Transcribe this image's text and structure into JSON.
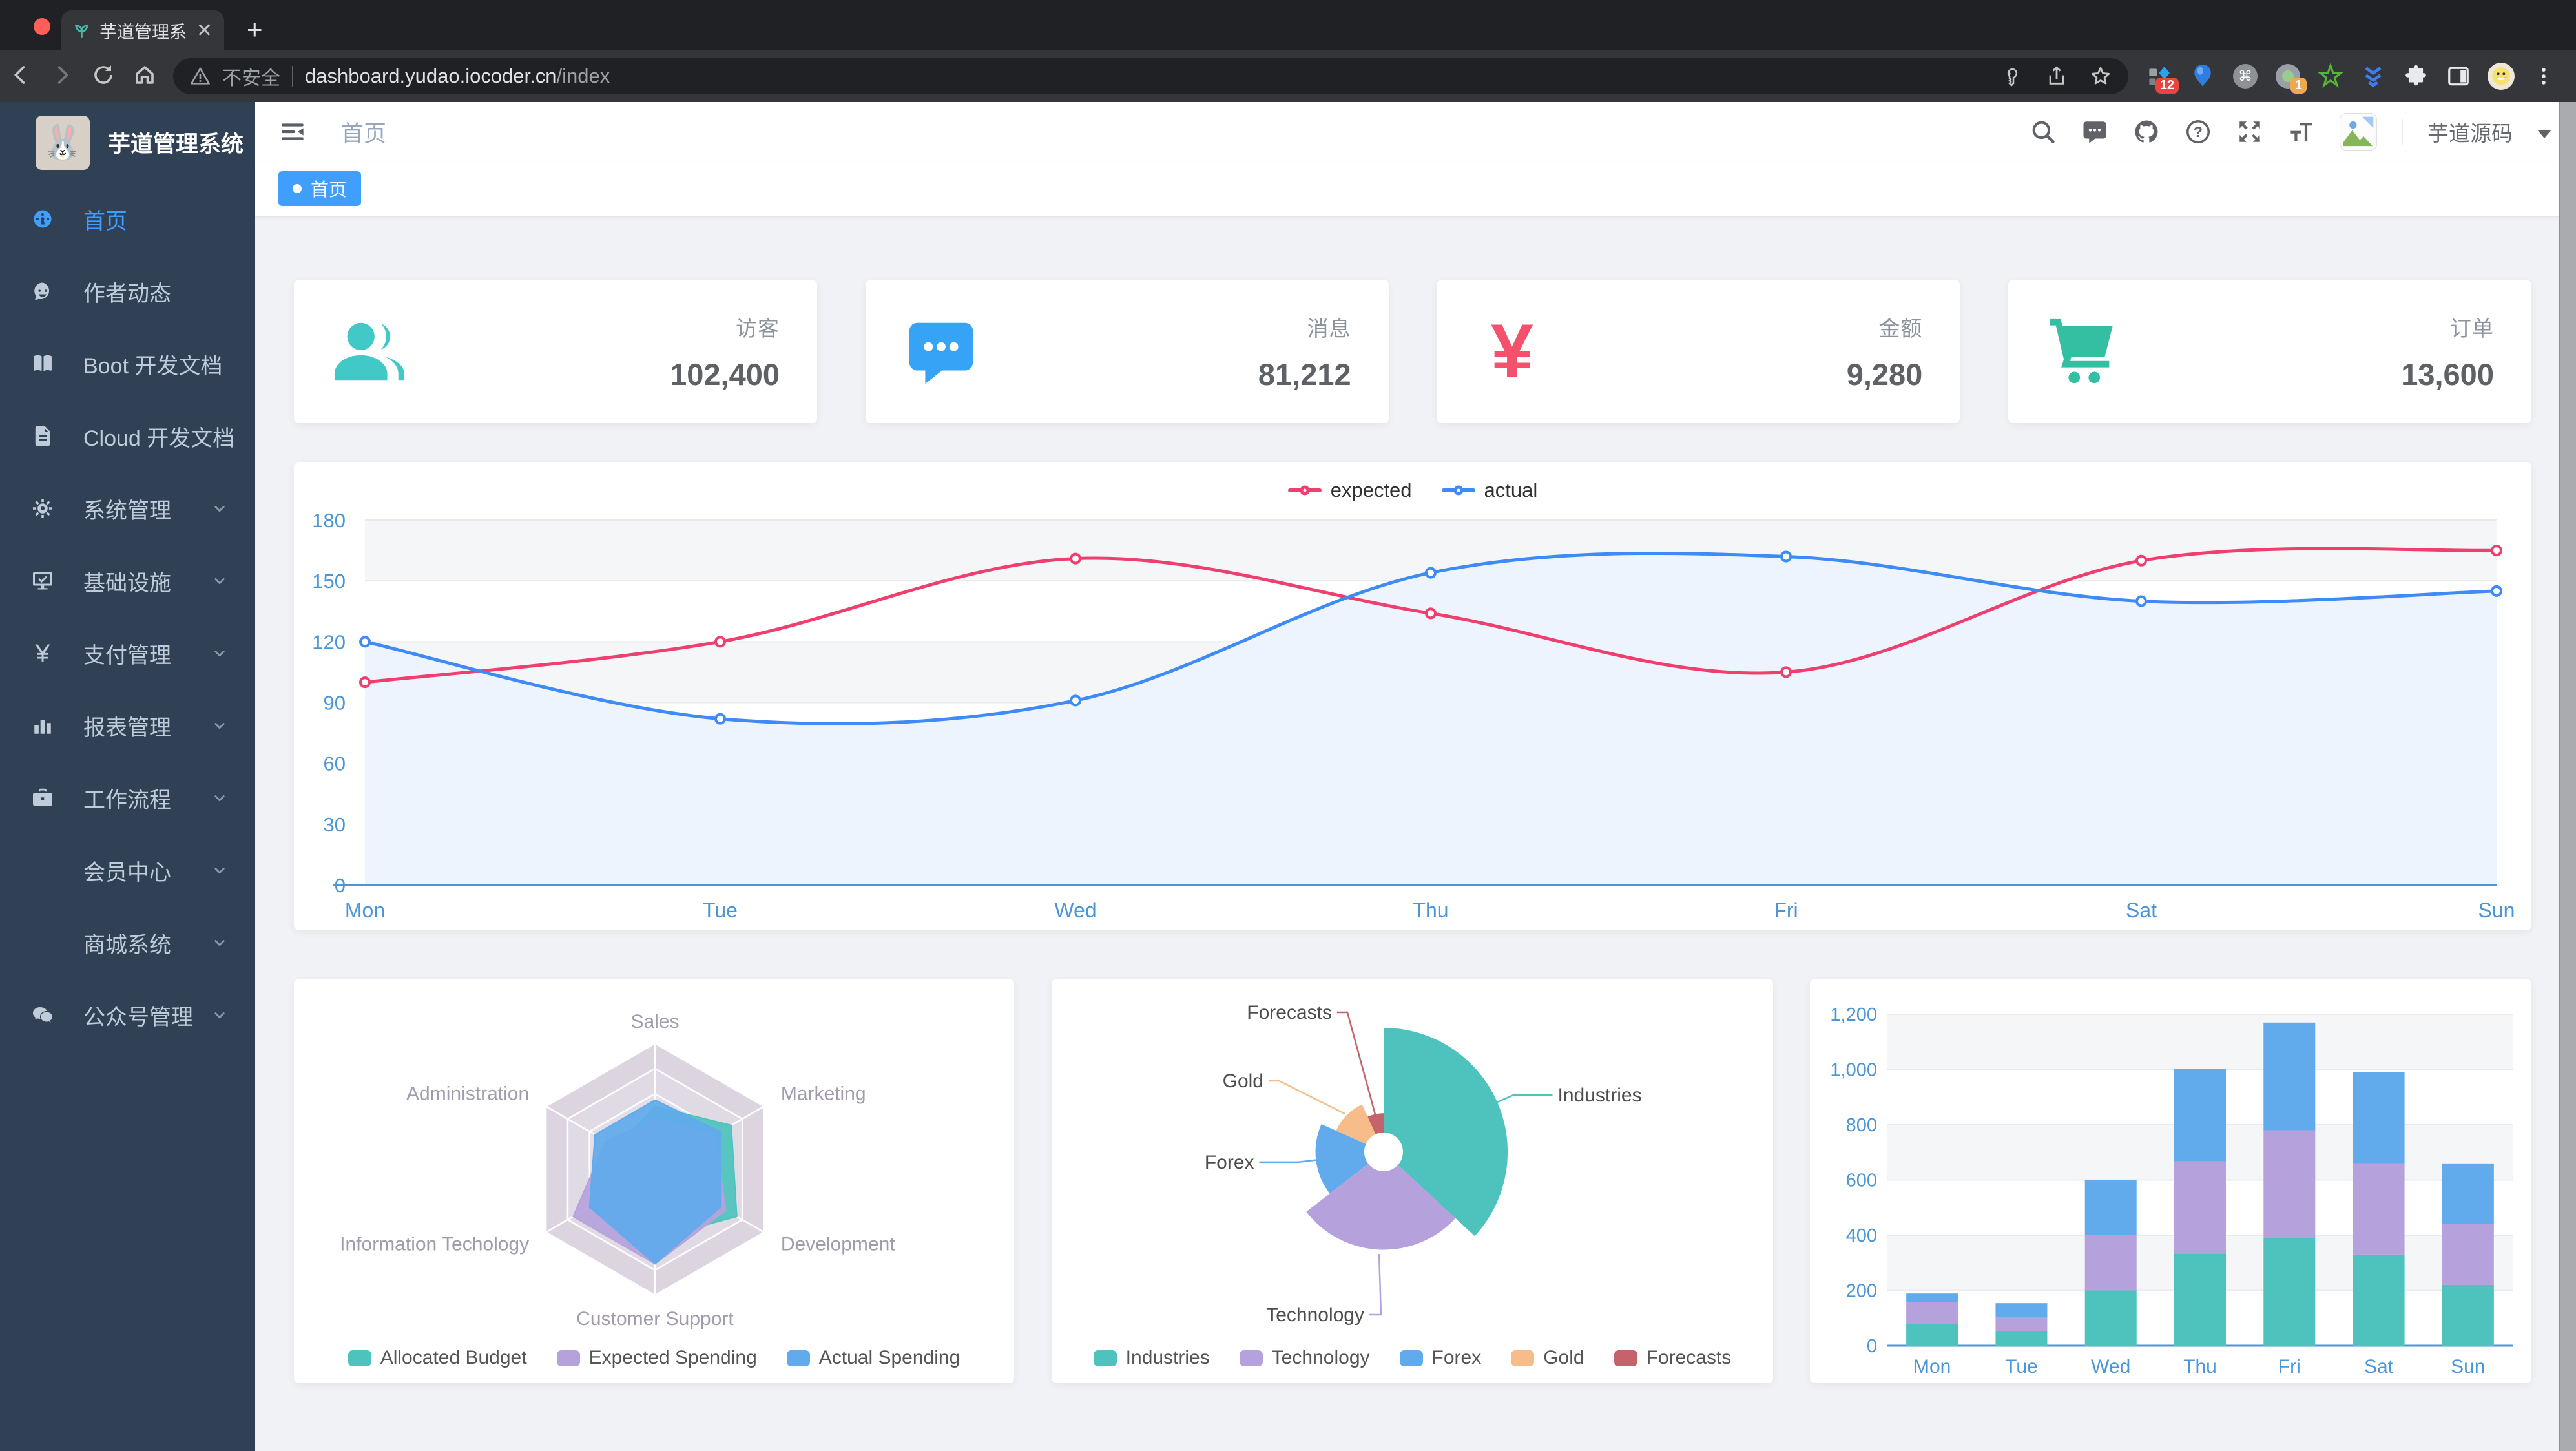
{
  "browser": {
    "traffic_lights": [
      "#ff5f57",
      "#febc2e",
      "#28c840"
    ],
    "tab_title": "芋道管理系统",
    "security_label": "不安全",
    "url_host": "dashboard.yudao.iocoder.cn",
    "url_path": "/index",
    "extension_badges": {
      "first": "12",
      "second": "1"
    }
  },
  "sidebar": {
    "title": "芋道管理系统",
    "colors": {
      "bg": "#304156",
      "text": "#bfcbd9",
      "active": "#409eff"
    },
    "items": [
      {
        "label": "首页",
        "icon": "dashboard-icon",
        "active": true,
        "chevron": false
      },
      {
        "label": "作者动态",
        "icon": "author-icon",
        "active": false,
        "chevron": false
      },
      {
        "label": "Boot 开发文档",
        "icon": "book-icon",
        "active": false,
        "chevron": false
      },
      {
        "label": "Cloud 开发文档",
        "icon": "document-icon",
        "active": false,
        "chevron": false
      },
      {
        "label": "系统管理",
        "icon": "gear-icon",
        "active": false,
        "chevron": true
      },
      {
        "label": "基础设施",
        "icon": "monitor-icon",
        "active": false,
        "chevron": true
      },
      {
        "label": "支付管理",
        "icon": "yen-icon",
        "active": false,
        "chevron": true
      },
      {
        "label": "报表管理",
        "icon": "barchart-icon",
        "active": false,
        "chevron": true
      },
      {
        "label": "工作流程",
        "icon": "briefcase-icon",
        "active": false,
        "chevron": true
      },
      {
        "label": "会员中心",
        "icon": "",
        "active": false,
        "chevron": true
      },
      {
        "label": "商城系统",
        "icon": "",
        "active": false,
        "chevron": true
      },
      {
        "label": "公众号管理",
        "icon": "wechat-icon",
        "active": false,
        "chevron": true
      }
    ]
  },
  "header": {
    "breadcrumb": "首页",
    "username": "芋道源码"
  },
  "tagsview": {
    "active_tag": "首页",
    "tag_color": "#409eff"
  },
  "stats": [
    {
      "label": "访客",
      "value": "102,400",
      "icon": "peoples-icon",
      "color": "#40c9c6"
    },
    {
      "label": "消息",
      "value": "81,212",
      "icon": "message-icon",
      "color": "#36a3f7"
    },
    {
      "label": "金额",
      "value": "9,280",
      "icon": "money-icon",
      "color": "#f4516c"
    },
    {
      "label": "订单",
      "value": "13,600",
      "icon": "shopping-icon",
      "color": "#34bfa3"
    }
  ],
  "chart_data": [
    {
      "id": "weekly-line",
      "type": "line",
      "categories": [
        "Mon",
        "Tue",
        "Wed",
        "Thu",
        "Fri",
        "Sat",
        "Sun"
      ],
      "series": [
        {
          "name": "expected",
          "color": "#EE3F6E",
          "values": [
            100,
            120,
            161,
            134,
            105,
            160,
            165
          ]
        },
        {
          "name": "actual",
          "color": "#3E8BF7",
          "area_color": "#EDF4FD",
          "values": [
            120,
            82,
            91,
            154,
            162,
            140,
            145
          ]
        }
      ],
      "ylim": [
        0,
        180
      ],
      "yticks": [
        0,
        30,
        60,
        90,
        120,
        150,
        180
      ],
      "legend_position": "top",
      "grid": true
    },
    {
      "id": "budget-radar",
      "type": "radar",
      "indicators": [
        {
          "name": "Sales",
          "max": 10000
        },
        {
          "name": "Administration",
          "max": 20000
        },
        {
          "name": "Information Techology",
          "max": 20000
        },
        {
          "name": "Customer Support",
          "max": 20000
        },
        {
          "name": "Development",
          "max": 20000
        },
        {
          "name": "Marketing",
          "max": 20000
        }
      ],
      "series": [
        {
          "name": "Allocated Budget",
          "color": "#4EC3BD",
          "values": [
            5000,
            7000,
            12000,
            11000,
            15000,
            14000
          ]
        },
        {
          "name": "Expected Spending",
          "color": "#B5A2DC",
          "values": [
            4000,
            9000,
            15000,
            15000,
            13000,
            11000
          ]
        },
        {
          "name": "Actual Spending",
          "color": "#61AAEC",
          "values": [
            5500,
            11000,
            12000,
            15000,
            12000,
            12000
          ]
        }
      ],
      "legend_position": "bottom"
    },
    {
      "id": "category-pie",
      "type": "pie",
      "rose_type": "radius",
      "items": [
        {
          "name": "Industries",
          "value": 320,
          "color": "#4EC3BD"
        },
        {
          "name": "Technology",
          "value": 240,
          "color": "#B5A2DC"
        },
        {
          "name": "Forex",
          "value": 149,
          "color": "#61AAEC"
        },
        {
          "name": "Gold",
          "value": 100,
          "color": "#F6BD8A"
        },
        {
          "name": "Forecasts",
          "value": 59,
          "color": "#C5626B"
        }
      ],
      "legend_position": "bottom"
    },
    {
      "id": "weekly-bar",
      "type": "bar",
      "stacked": true,
      "categories": [
        "Mon",
        "Tue",
        "Wed",
        "Thu",
        "Fri",
        "Sat",
        "Sun"
      ],
      "series": [
        {
          "color": "#4EC3BD",
          "values": [
            79,
            52,
            200,
            334,
            390,
            330,
            220
          ]
        },
        {
          "color": "#B5A2DC",
          "values": [
            80,
            52,
            200,
            334,
            390,
            330,
            220
          ]
        },
        {
          "color": "#61AAEC",
          "values": [
            30,
            50,
            200,
            334,
            390,
            330,
            220
          ]
        }
      ],
      "ylim": [
        0,
        1200
      ],
      "yticks": [
        "0",
        "200",
        "400",
        "600",
        "800",
        "1,000",
        "1,200"
      ]
    }
  ]
}
